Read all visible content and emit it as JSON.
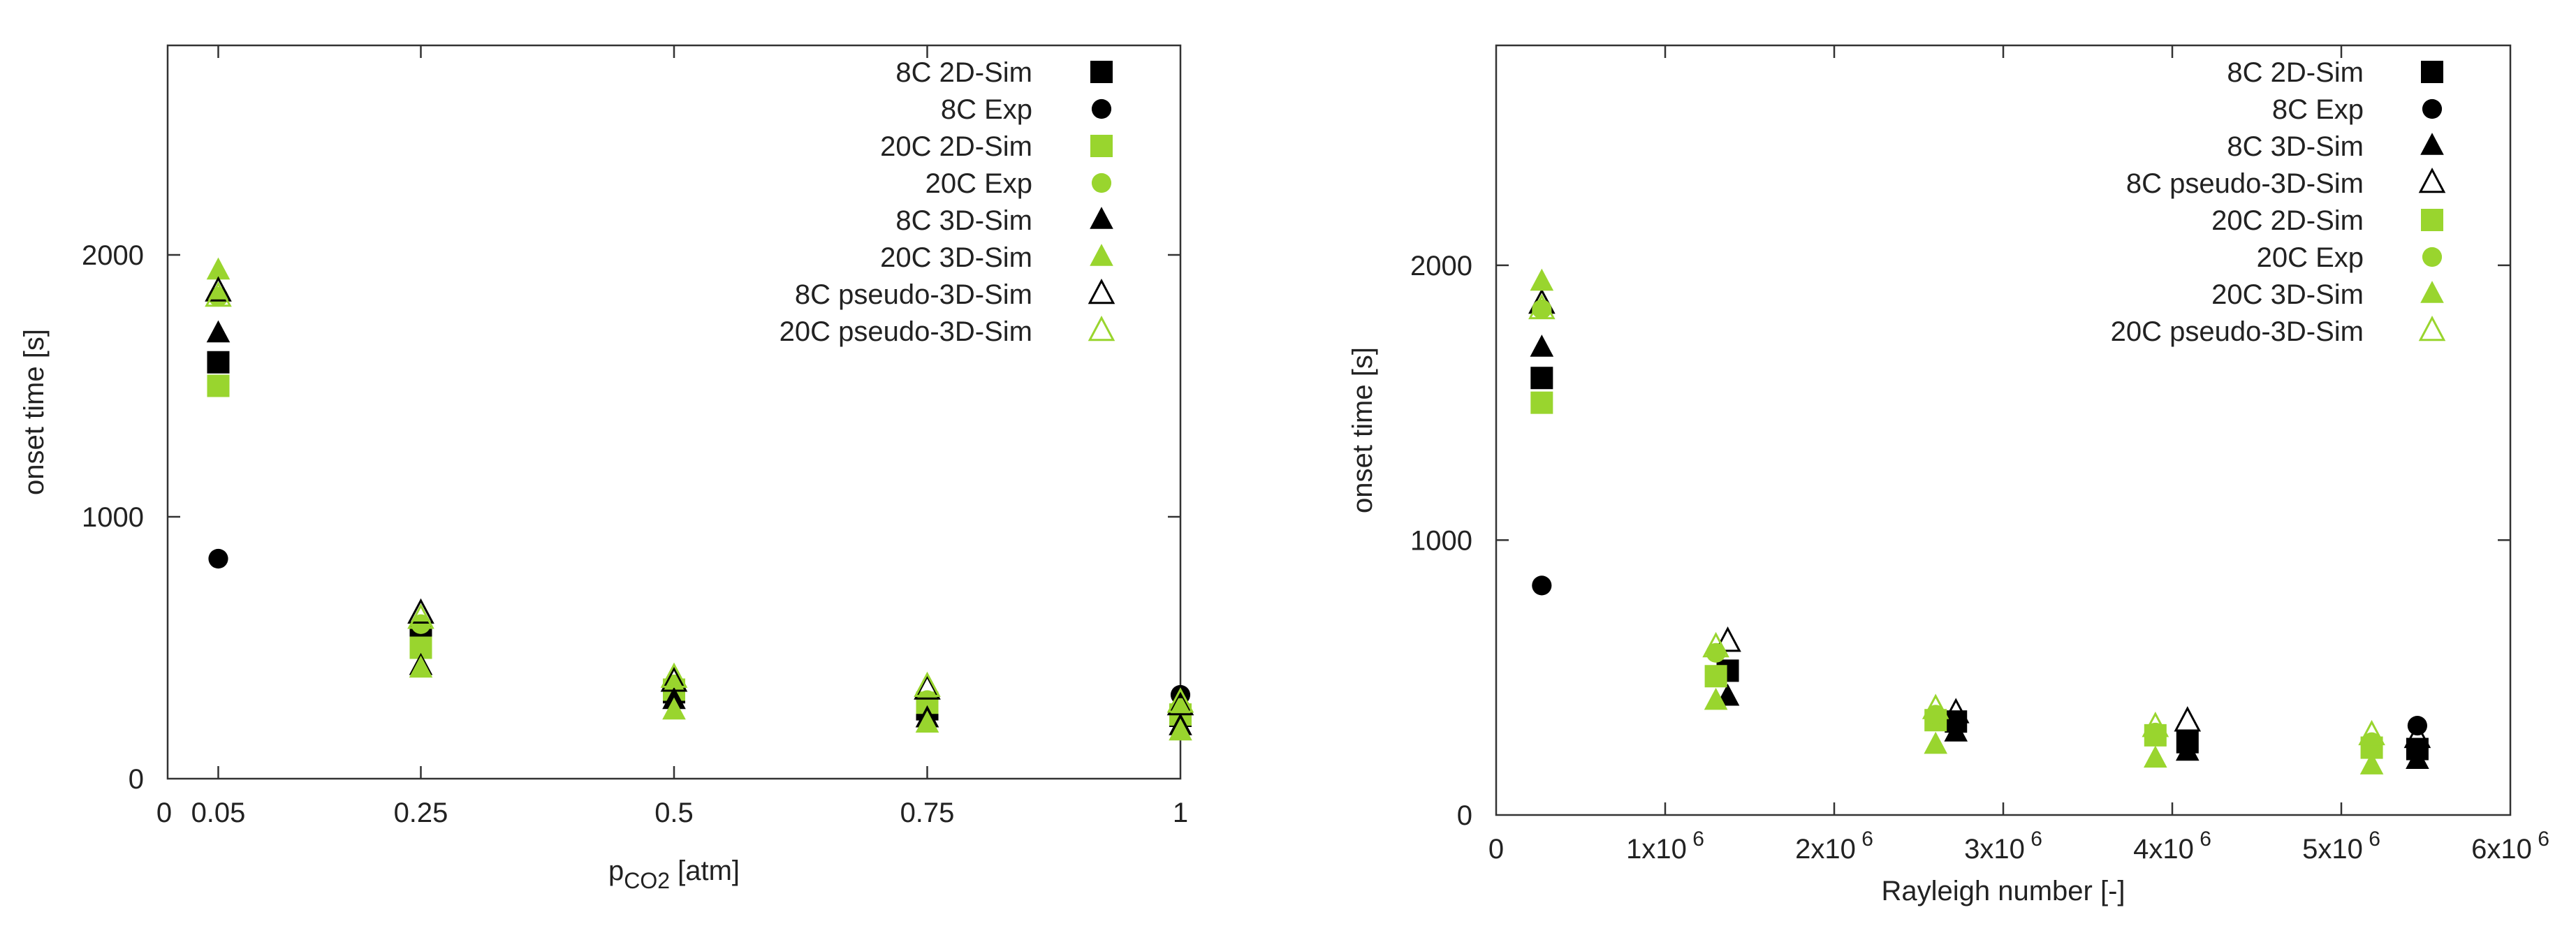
{
  "colors": {
    "black": "#000000",
    "green": "#99d52e",
    "axis": "#333333"
  },
  "chart_data": [
    {
      "type": "scatter",
      "title": "",
      "xlabel": "p",
      "xlabel_sub": "CO2",
      "xlabel_tail": " [atm]",
      "ylabel": "onset time [s]",
      "xlim": [
        0,
        1
      ],
      "ylim": [
        0,
        2800
      ],
      "xticks": [
        {
          "value": 0,
          "label": "0"
        },
        {
          "value": 0.05,
          "label": "0.05"
        },
        {
          "value": 0.25,
          "label": "0.25"
        },
        {
          "value": 0.5,
          "label": "0.5"
        },
        {
          "value": 0.75,
          "label": "0.75"
        },
        {
          "value": 1,
          "label": "1"
        }
      ],
      "yticks": [
        {
          "value": 0,
          "label": "0"
        },
        {
          "value": 1000,
          "label": "1000"
        },
        {
          "value": 2000,
          "label": "2000"
        }
      ],
      "legend": "top-right",
      "series": [
        {
          "name": "8C 2D-Sim",
          "marker": "square",
          "color": "#000000",
          "filled": true,
          "points": [
            [
              0.05,
              1590
            ],
            [
              0.25,
              540
            ],
            [
              0.5,
              330
            ],
            [
              0.75,
              265
            ],
            [
              1,
              240
            ]
          ]
        },
        {
          "name": "8C Exp",
          "marker": "circle",
          "color": "#000000",
          "filled": true,
          "points": [
            [
              0.05,
              840
            ],
            [
              1,
              320
            ]
          ]
        },
        {
          "name": "20C 2D-Sim",
          "marker": "square",
          "color": "#99d52e",
          "filled": true,
          "points": [
            [
              0.05,
              1500
            ],
            [
              0.25,
              500
            ],
            [
              0.5,
              340
            ],
            [
              0.75,
              290
            ],
            [
              1,
              245
            ]
          ]
        },
        {
          "name": "20C Exp",
          "marker": "circle",
          "color": "#99d52e",
          "filled": true,
          "points": [
            [
              0.05,
              1840
            ],
            [
              0.25,
              590
            ],
            [
              0.5,
              360
            ],
            [
              0.75,
              300
            ],
            [
              1,
              270
            ]
          ]
        },
        {
          "name": "8C 3D-Sim",
          "marker": "triangle",
          "color": "#000000",
          "filled": true,
          "points": [
            [
              0.05,
              1700
            ],
            [
              0.25,
              430
            ],
            [
              0.5,
              300
            ],
            [
              0.75,
              230
            ],
            [
              1,
              200
            ]
          ]
        },
        {
          "name": "20C 3D-Sim",
          "marker": "triangle",
          "color": "#99d52e",
          "filled": true,
          "points": [
            [
              0.05,
              1940
            ],
            [
              0.25,
              420
            ],
            [
              0.5,
              260
            ],
            [
              0.75,
              210
            ],
            [
              1,
              180
            ]
          ]
        },
        {
          "name": "8C pseudo-3D-Sim",
          "marker": "triangle",
          "color": "#000000",
          "filled": false,
          "points": [
            [
              0.05,
              1860
            ],
            [
              0.25,
              630
            ],
            [
              0.5,
              370
            ],
            [
              0.75,
              340
            ],
            [
              1,
              280
            ]
          ]
        },
        {
          "name": "20C pseudo-3D-Sim",
          "marker": "triangle",
          "color": "#99d52e",
          "filled": false,
          "points": [
            [
              0.05,
              1840
            ],
            [
              0.25,
              610
            ],
            [
              0.5,
              385
            ],
            [
              0.75,
              350
            ],
            [
              1,
              290
            ]
          ]
        }
      ]
    },
    {
      "type": "scatter",
      "title": "",
      "xlabel": "Rayleigh number [-]",
      "ylabel": "onset time [s]",
      "xlim": [
        0,
        6000000
      ],
      "ylim": [
        0,
        2800
      ],
      "xticks": [
        {
          "value": 0,
          "label": "0"
        },
        {
          "value": 1000000,
          "label": "1x10",
          "exp": "6"
        },
        {
          "value": 2000000,
          "label": "2x10",
          "exp": "6"
        },
        {
          "value": 3000000,
          "label": "3x10",
          "exp": "6"
        },
        {
          "value": 4000000,
          "label": "4x10",
          "exp": "6"
        },
        {
          "value": 5000000,
          "label": "5x10",
          "exp": "6"
        },
        {
          "value": 6000000,
          "label": "6x10",
          "exp": "6"
        }
      ],
      "yticks": [
        {
          "value": 0,
          "label": "0"
        },
        {
          "value": 1000,
          "label": "1000"
        },
        {
          "value": 2000,
          "label": "2000"
        }
      ],
      "legend": "top-right",
      "series": [
        {
          "name": "8C 2D-Sim",
          "marker": "square",
          "color": "#000000",
          "filled": true,
          "points": [
            [
              270000,
              1590
            ],
            [
              1370000,
              525
            ],
            [
              2720000,
              340
            ],
            [
              4090000,
              265
            ],
            [
              5450000,
              240
            ]
          ]
        },
        {
          "name": "8C Exp",
          "marker": "circle",
          "color": "#000000",
          "filled": true,
          "points": [
            [
              270000,
              835
            ],
            [
              5450000,
              325
            ]
          ]
        },
        {
          "name": "8C 3D-Sim",
          "marker": "triangle",
          "color": "#000000",
          "filled": true,
          "points": [
            [
              270000,
              1700
            ],
            [
              1370000,
              430
            ],
            [
              2720000,
              300
            ],
            [
              4090000,
              230
            ],
            [
              5450000,
              200
            ]
          ]
        },
        {
          "name": "8C pseudo-3D-Sim",
          "marker": "triangle",
          "color": "#000000",
          "filled": false,
          "points": [
            [
              270000,
              1860
            ],
            [
              1370000,
              630
            ],
            [
              2720000,
              370
            ],
            [
              4090000,
              340
            ],
            [
              5450000,
              280
            ]
          ]
        },
        {
          "name": "20C 2D-Sim",
          "marker": "square",
          "color": "#99d52e",
          "filled": true,
          "points": [
            [
              270000,
              1500
            ],
            [
              1300000,
              505
            ],
            [
              2600000,
              345
            ],
            [
              3900000,
              290
            ],
            [
              5180000,
              245
            ]
          ]
        },
        {
          "name": "20C Exp",
          "marker": "circle",
          "color": "#99d52e",
          "filled": true,
          "points": [
            [
              270000,
              1840
            ],
            [
              1300000,
              590
            ],
            [
              2600000,
              365
            ],
            [
              3900000,
              300
            ],
            [
              5180000,
              265
            ]
          ]
        },
        {
          "name": "20C 3D-Sim",
          "marker": "triangle",
          "color": "#99d52e",
          "filled": true,
          "points": [
            [
              270000,
              1940
            ],
            [
              1300000,
              415
            ],
            [
              2600000,
              255
            ],
            [
              3900000,
              205
            ],
            [
              5180000,
              180
            ]
          ]
        },
        {
          "name": "20C pseudo-3D-Sim",
          "marker": "triangle",
          "color": "#99d52e",
          "filled": false,
          "points": [
            [
              270000,
              1840
            ],
            [
              1300000,
              610
            ],
            [
              2600000,
              385
            ],
            [
              3900000,
              320
            ],
            [
              5180000,
              290
            ]
          ]
        }
      ]
    }
  ]
}
